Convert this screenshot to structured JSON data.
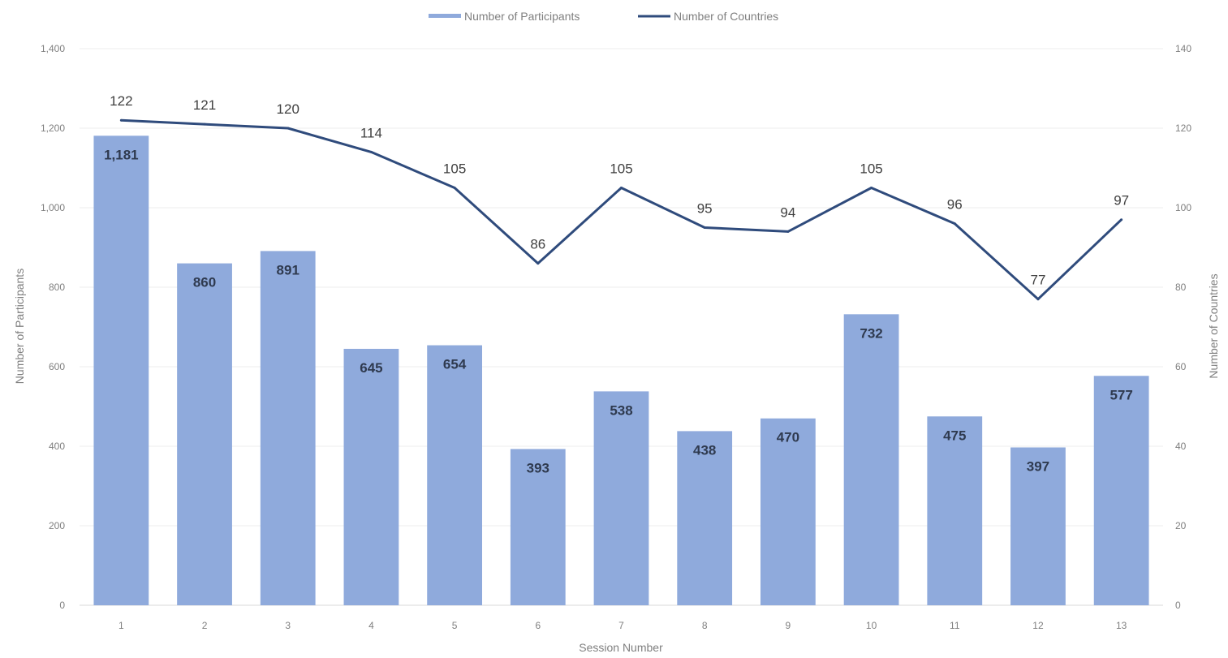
{
  "chart_data": {
    "type": "bar",
    "title": "",
    "xlabel": "Session Number",
    "ylabel": "Number of Participants",
    "y2label": "Number of Countries",
    "categories": [
      "1",
      "2",
      "3",
      "4",
      "5",
      "6",
      "7",
      "8",
      "9",
      "10",
      "11",
      "12",
      "13"
    ],
    "series": [
      {
        "name": "Number of Participants",
        "type": "bar",
        "axis": "left",
        "values": [
          1181,
          860,
          891,
          645,
          654,
          393,
          538,
          438,
          470,
          732,
          475,
          397,
          577
        ],
        "labels": [
          "1,181",
          "860",
          "891",
          "645",
          "654",
          "393",
          "538",
          "438",
          "470",
          "732",
          "475",
          "397",
          "577"
        ],
        "color": "#8faadc"
      },
      {
        "name": "Number of Countries",
        "type": "line",
        "axis": "right",
        "values": [
          122,
          121,
          120,
          114,
          105,
          86,
          105,
          95,
          94,
          105,
          96,
          77,
          97
        ],
        "labels": [
          "122",
          "121",
          "120",
          "114",
          "105",
          "86",
          "105",
          "95",
          "94",
          "105",
          "96",
          "77",
          "97"
        ],
        "color": "#2f4b7c"
      }
    ],
    "ylim": [
      0,
      1400
    ],
    "y2lim": [
      0,
      140
    ],
    "yticks": [
      "0",
      "200",
      "400",
      "600",
      "800",
      "1,000",
      "1,200",
      "1,400"
    ],
    "y2ticks": [
      "0",
      "20",
      "40",
      "60",
      "80",
      "100",
      "120",
      "140"
    ],
    "grid": true,
    "legend_position": "top-center"
  }
}
